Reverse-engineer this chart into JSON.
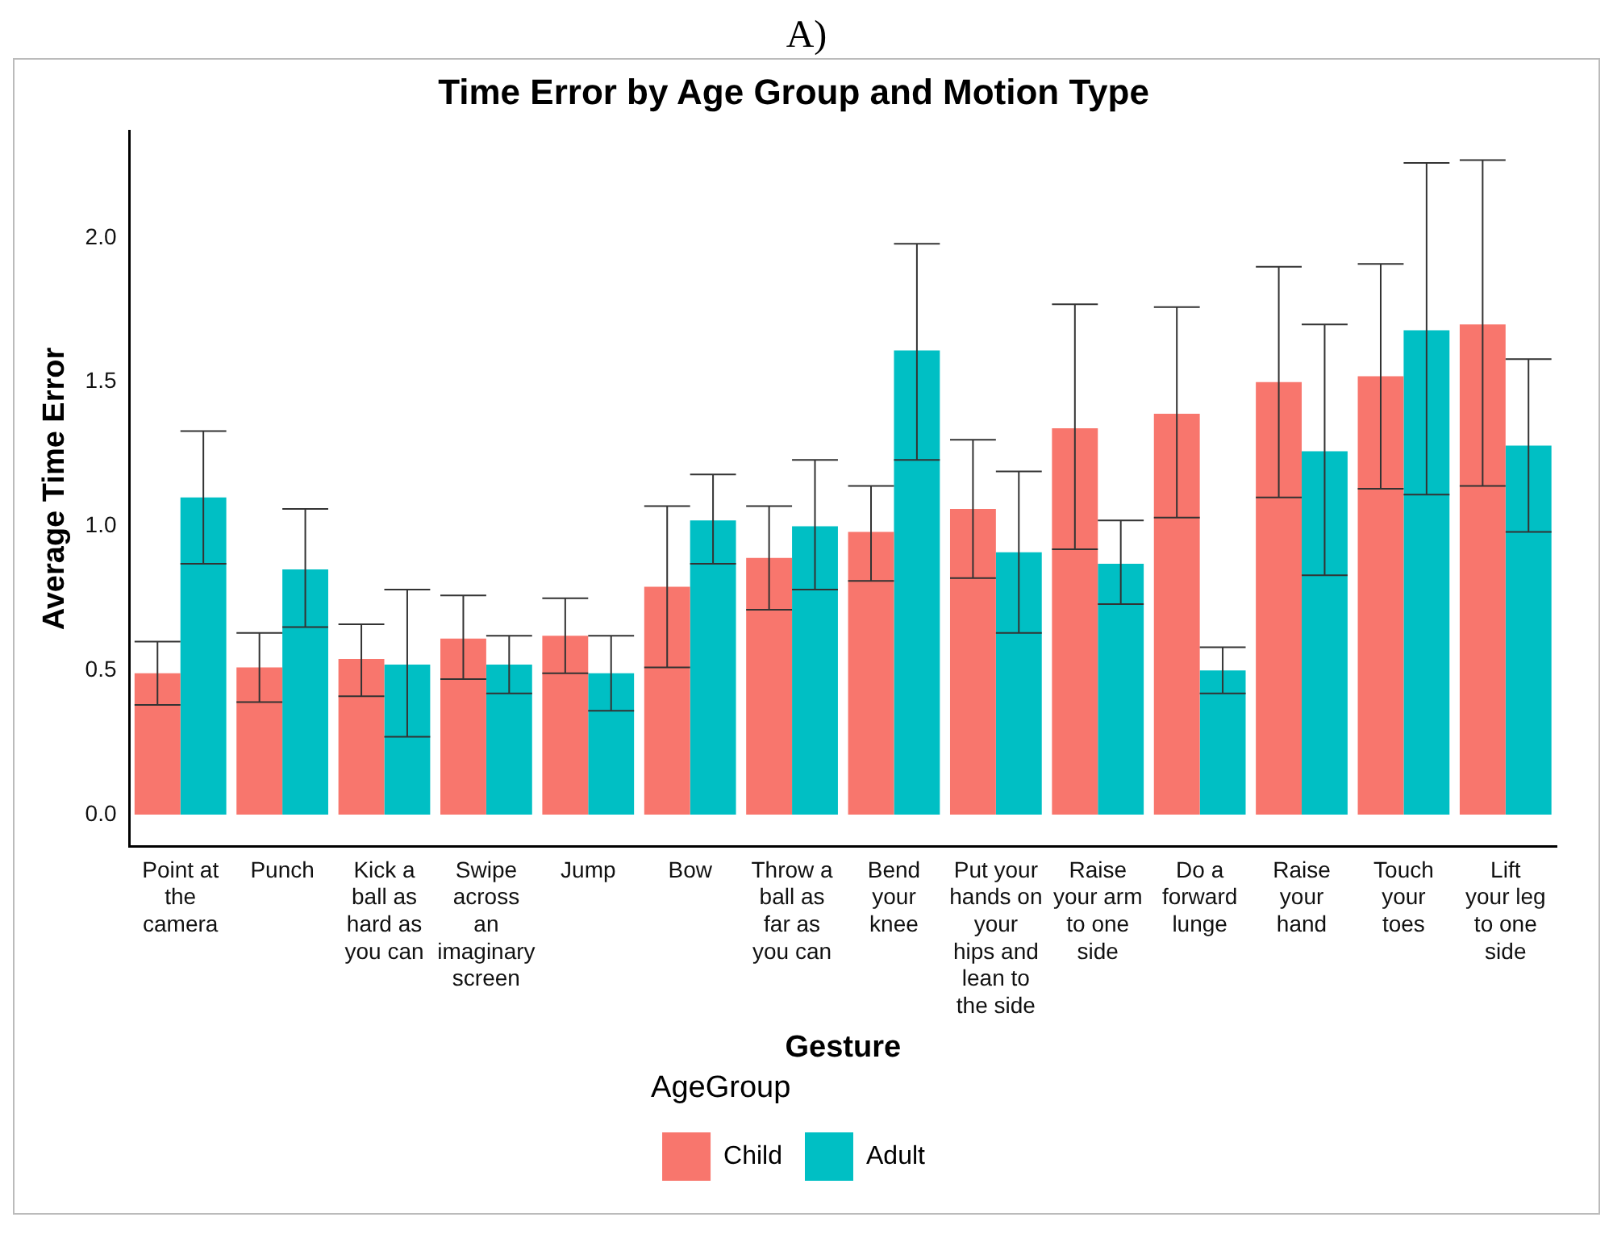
{
  "chart_data": {
    "type": "bar",
    "title": "Time Error by Age Group and Motion Type",
    "subtitle": "A)",
    "xlabel": "Gesture",
    "ylabel": "Average Time Error",
    "legend_title": "AgeGroup",
    "categories": [
      "Point at the camera",
      "Punch",
      "Kick a ball as hard as you can",
      "Swipe across an imaginary screen",
      "Jump",
      "Bow",
      "Throw a ball as far as you can",
      "Bend your knee",
      "Put your hands on your hips and lean to the side",
      "Raise your arm to one side",
      "Do a forward lunge",
      "Raise your hand",
      "Touch your toes",
      "Lift your leg to one side"
    ],
    "series": [
      {
        "name": "Child",
        "color": "#f8766d",
        "values": [
          0.49,
          0.51,
          0.54,
          0.61,
          0.62,
          0.79,
          0.89,
          0.98,
          1.06,
          1.34,
          1.39,
          1.5,
          1.52,
          1.7
        ],
        "errors": [
          [
            0.38,
            0.6
          ],
          [
            0.39,
            0.63
          ],
          [
            0.41,
            0.66
          ],
          [
            0.47,
            0.76
          ],
          [
            0.49,
            0.75
          ],
          [
            0.51,
            1.07
          ],
          [
            0.71,
            1.07
          ],
          [
            0.81,
            1.14
          ],
          [
            0.82,
            1.3
          ],
          [
            0.92,
            1.77
          ],
          [
            1.03,
            1.76
          ],
          [
            1.1,
            1.9
          ],
          [
            1.13,
            1.91
          ],
          [
            1.14,
            2.27
          ]
        ]
      },
      {
        "name": "Adult",
        "color": "#00bfc4",
        "values": [
          1.1,
          0.85,
          0.52,
          0.52,
          0.49,
          1.02,
          1.0,
          1.61,
          0.91,
          0.87,
          0.5,
          1.26,
          1.68,
          1.28
        ],
        "errors": [
          [
            0.87,
            1.33
          ],
          [
            0.65,
            1.06
          ],
          [
            0.27,
            0.78
          ],
          [
            0.42,
            0.62
          ],
          [
            0.36,
            0.62
          ],
          [
            0.87,
            1.18
          ],
          [
            0.78,
            1.23
          ],
          [
            1.23,
            1.98
          ],
          [
            0.63,
            1.19
          ],
          [
            0.73,
            1.02
          ],
          [
            0.42,
            0.58
          ],
          [
            0.83,
            1.7
          ],
          [
            1.11,
            2.26
          ],
          [
            0.98,
            1.58
          ]
        ]
      }
    ],
    "ylim": [
      -0.11,
      2.37
    ],
    "yticks": [
      {
        "value": 0,
        "label": "0.0"
      },
      0.5,
      {
        "value": 1,
        "label": "1.0"
      },
      1.5,
      {
        "value": 2,
        "label": "2.0"
      }
    ],
    "grid": false,
    "legend": "bottom"
  }
}
